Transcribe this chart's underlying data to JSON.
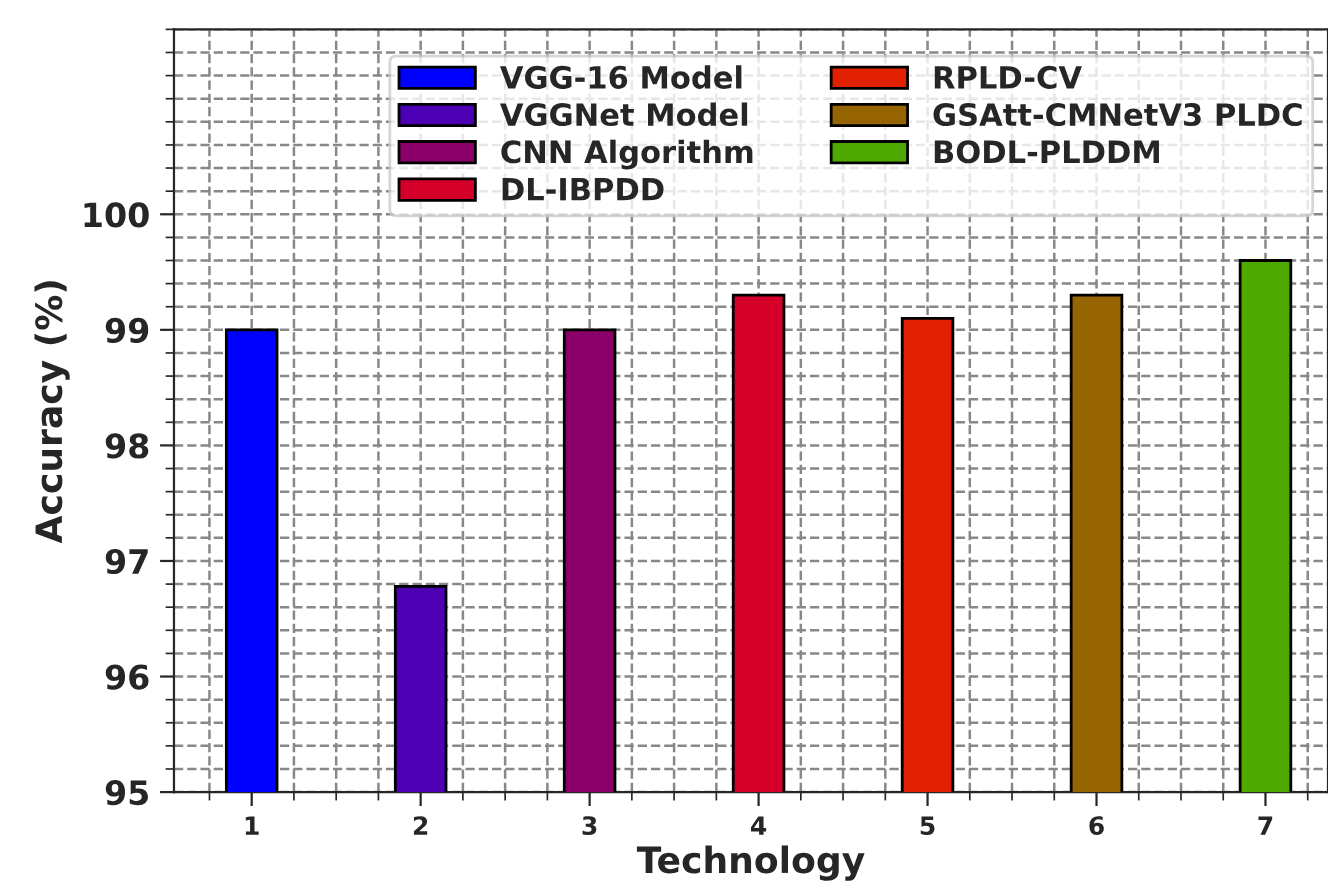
{
  "chart_data": {
    "type": "bar",
    "xlabel": "Technology",
    "ylabel": "Accuracy (%)",
    "xlim": [
      0.54,
      7.37
    ],
    "xticks": [
      1,
      2,
      3,
      4,
      5,
      6,
      7
    ],
    "ylim": [
      95,
      101.6
    ],
    "yticks": [
      95,
      96,
      97,
      98,
      99,
      100
    ],
    "grid": true,
    "legend": "top right",
    "series": [
      {
        "name": "VGG-16 Model",
        "color": "#0000ff",
        "x": [
          1
        ],
        "values": [
          99.0
        ]
      },
      {
        "name": "VGGNet Model",
        "color": "#4b00b4",
        "x": [
          2
        ],
        "values": [
          96.78
        ]
      },
      {
        "name": "CNN Algorithm",
        "color": "#8b0068",
        "x": [
          3
        ],
        "values": [
          99.0
        ]
      },
      {
        "name": "DL-IBPDD",
        "color": "#d4002a",
        "x": [
          4
        ],
        "values": [
          99.3
        ]
      },
      {
        "name": "RPLD-CV",
        "color": "#e02000",
        "x": [
          5
        ],
        "values": [
          99.1
        ]
      },
      {
        "name": "GSAtt-CMNetV3 PLDC",
        "color": "#966400",
        "x": [
          6
        ],
        "values": [
          99.3
        ]
      },
      {
        "name": "BODL-PLDDM",
        "color": "#4eaa00",
        "x": [
          7
        ],
        "values": [
          99.6
        ]
      }
    ]
  }
}
